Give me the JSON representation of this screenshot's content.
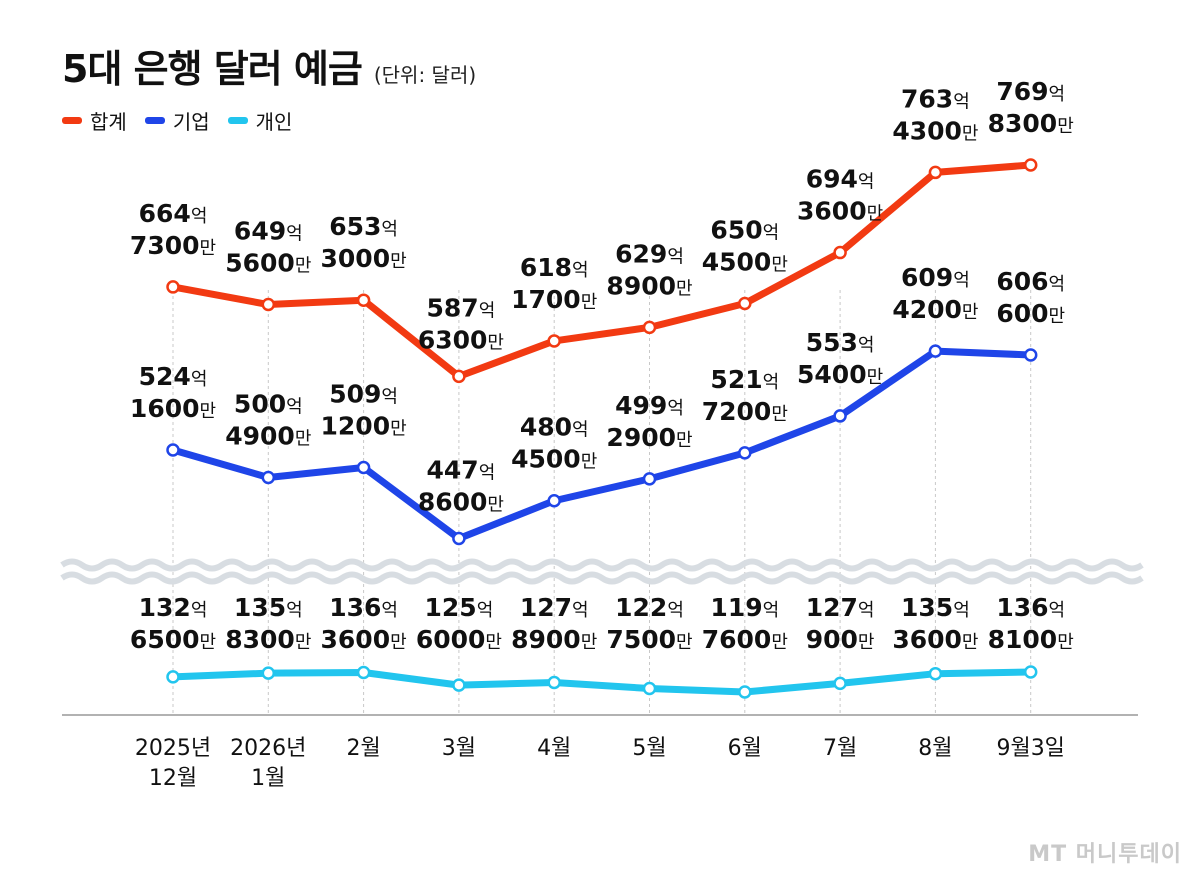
{
  "title": "5대 은행 달러 예금",
  "subtitle": "(단위: 달러)",
  "legend": [
    {
      "label": "합계",
      "color": "#f23a12"
    },
    {
      "label": "기업",
      "color": "#1f45e8"
    },
    {
      "label": "개인",
      "color": "#22c5ee"
    }
  ],
  "watermark": "MT 머니투데이",
  "chart_data": {
    "type": "line",
    "categories": [
      "2025년\n12월",
      "2026년\n1월",
      "2월",
      "3월",
      "4월",
      "5월",
      "6월",
      "7월",
      "8월",
      "9월3일"
    ],
    "series": [
      {
        "name": "합계",
        "color": "#f23a12",
        "values": [
          66473000000,
          64956000000,
          65330000000,
          58763000000,
          61817000000,
          62989000000,
          65045000000,
          69436000000,
          76343000000,
          76983000000
        ],
        "labels": [
          [
            "664억",
            "7300만"
          ],
          [
            "649억",
            "5600만"
          ],
          [
            "653억",
            "3000만"
          ],
          [
            "587억",
            "6300만"
          ],
          [
            "618억",
            "1700만"
          ],
          [
            "629억",
            "8900만"
          ],
          [
            "650억",
            "4500만"
          ],
          [
            "694억",
            "3600만"
          ],
          [
            "763억",
            "4300만"
          ],
          [
            "769억",
            "8300만"
          ]
        ]
      },
      {
        "name": "기업",
        "color": "#1f45e8",
        "values": [
          52416000000,
          50049000000,
          50912000000,
          44786000000,
          48045000000,
          49929000000,
          52172000000,
          55354000000,
          60942000000,
          60606000000
        ],
        "labels": [
          [
            "524억",
            "1600만"
          ],
          [
            "500억",
            "4900만"
          ],
          [
            "509억",
            "1200만"
          ],
          [
            "447억",
            "8600만"
          ],
          [
            "480억",
            "4500만"
          ],
          [
            "499억",
            "2900만"
          ],
          [
            "521억",
            "7200만"
          ],
          [
            "553억",
            "5400만"
          ],
          [
            "609억",
            "4200만"
          ],
          [
            "606억",
            "600만"
          ]
        ]
      },
      {
        "name": "개인",
        "color": "#22c5ee",
        "values": [
          13265000000,
          13583000000,
          13636000000,
          12560000000,
          12789000000,
          12275000000,
          11976000000,
          12709000000,
          13536000000,
          13681000000
        ],
        "labels": [
          [
            "132억",
            "6500만"
          ],
          [
            "135억",
            "8300만"
          ],
          [
            "136억",
            "3600만"
          ],
          [
            "125억",
            "6000만"
          ],
          [
            "127억",
            "8900만"
          ],
          [
            "122억",
            "7500만"
          ],
          [
            "119억",
            "7600만"
          ],
          [
            "127억",
            "900만"
          ],
          [
            "135억",
            "3600만"
          ],
          [
            "136억",
            "8100만"
          ]
        ]
      }
    ],
    "axis_break": true,
    "grid": "vertical dotted"
  }
}
